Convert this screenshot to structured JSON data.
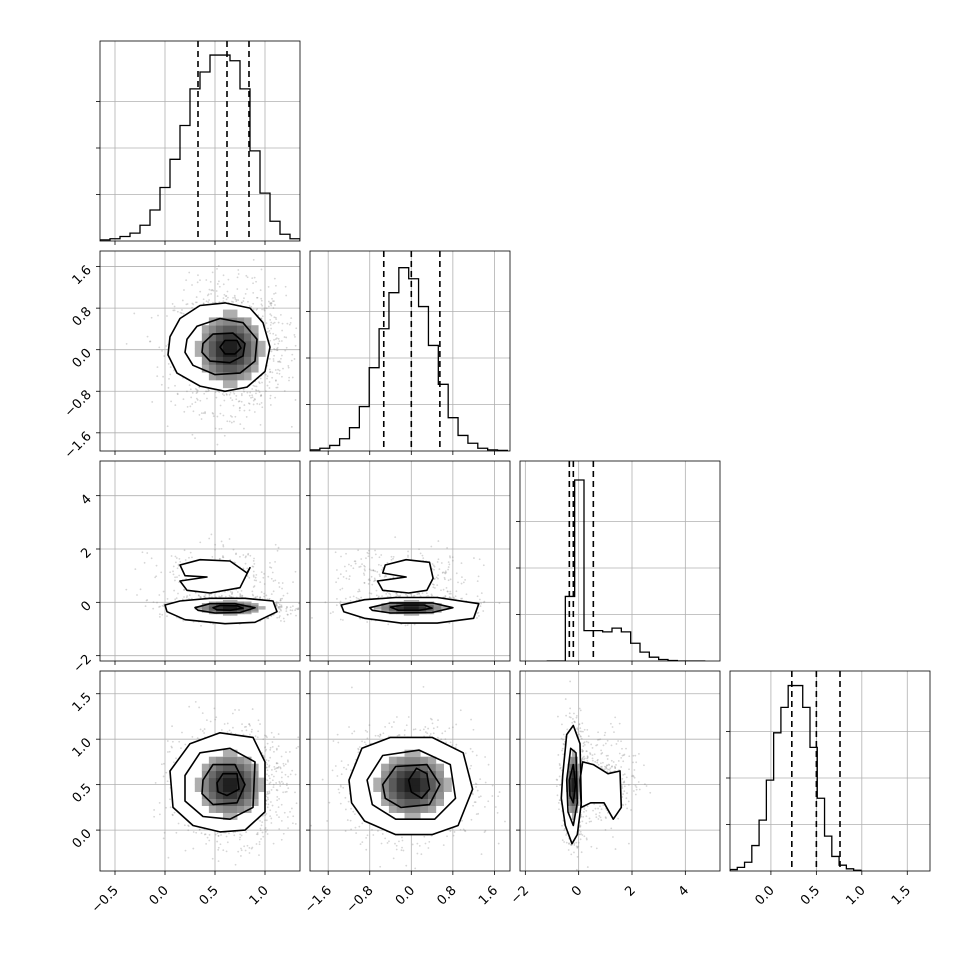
{
  "chart_data": {
    "type": "corner",
    "title": "",
    "parameters": [
      "",
      "",
      "",
      ""
    ],
    "quantile_levels": [
      0.16,
      0.5,
      0.84
    ],
    "grid": true,
    "colors": {
      "line": "#000000",
      "grid": "#b0b0b0",
      "scatter": "#8a8a8a",
      "background": "#ffffff"
    },
    "axes": [
      {
        "range": [
          -0.65,
          1.35
        ],
        "ticks": [
          -0.5,
          0.0,
          0.5,
          1.0
        ],
        "tick_labels": [
          "-0.5",
          "0.0",
          "0.5",
          "1.0"
        ]
      },
      {
        "range": [
          -1.95,
          1.9
        ],
        "ticks": [
          -1.6,
          -0.8,
          0.0,
          0.8,
          1.6
        ],
        "tick_labels": [
          "-1.6",
          "-0.8",
          "0.0",
          "0.8",
          "1.6"
        ]
      },
      {
        "range": [
          -2.2,
          5.3
        ],
        "ticks": [
          -2,
          0,
          2,
          4
        ],
        "tick_labels": [
          "-2",
          "0",
          "2",
          "4"
        ]
      },
      {
        "range": [
          -0.45,
          1.75
        ],
        "ticks": [
          0.0,
          0.5,
          1.0,
          1.5
        ],
        "tick_labels": [
          "0.0",
          "0.5",
          "1.0",
          "1.5"
        ]
      }
    ],
    "histograms": [
      {
        "param": 0,
        "edges_start": -0.65,
        "bin_width": 0.1,
        "counts": [
          2,
          4,
          8,
          14,
          28,
          55,
          95,
          145,
          205,
          270,
          300,
          330,
          330,
          320,
          270,
          160,
          85,
          35,
          12,
          4
        ],
        "quantiles": [
          0.33,
          0.62,
          0.84
        ],
        "ymax": 355
      },
      {
        "param": 1,
        "edges_start": -1.95,
        "bin_width": 0.19,
        "counts": [
          2,
          5,
          10,
          22,
          42,
          80,
          150,
          220,
          285,
          330,
          310,
          260,
          190,
          120,
          60,
          28,
          14,
          5,
          2,
          1
        ],
        "quantiles": [
          -0.53,
          0.0,
          0.55
        ],
        "ymax": 360
      },
      {
        "param": 2,
        "edges_start": -1.2,
        "bin_width": 0.35,
        "counts": [
          0,
          0,
          255,
          715,
          120,
          120,
          115,
          130,
          115,
          70,
          35,
          15,
          6,
          2,
          0,
          0,
          0
        ],
        "quantiles": [
          -0.35,
          -0.2,
          0.55
        ],
        "ymax": 790
      },
      {
        "param": 3,
        "edges_start": -0.45,
        "bin_width": 0.08,
        "counts": [
          2,
          5,
          12,
          35,
          70,
          125,
          190,
          225,
          255,
          255,
          225,
          170,
          100,
          48,
          20,
          8,
          3,
          1
        ],
        "quantiles": [
          0.23,
          0.5,
          0.76
        ],
        "ymax": 275
      }
    ],
    "pairs": [
      {
        "x_param": 0,
        "y_param": 1,
        "style": "gaussian",
        "center": [
          0.65,
          0.02
        ],
        "sigma": [
          0.22,
          0.47
        ],
        "shading_extent": [
          0.35,
          0.85
        ],
        "contours": [
          [
            [
              0.05,
              0.25
            ],
            [
              0.15,
              0.6
            ],
            [
              0.35,
              0.85
            ],
            [
              0.6,
              0.9
            ],
            [
              0.85,
              0.8
            ],
            [
              0.98,
              0.52
            ],
            [
              1.05,
              0.05
            ],
            [
              1.0,
              -0.42
            ],
            [
              0.82,
              -0.72
            ],
            [
              0.6,
              -0.8
            ],
            [
              0.35,
              -0.7
            ],
            [
              0.12,
              -0.45
            ],
            [
              0.03,
              -0.1
            ]
          ],
          [
            [
              0.22,
              0.2
            ],
            [
              0.32,
              0.45
            ],
            [
              0.55,
              0.6
            ],
            [
              0.78,
              0.52
            ],
            [
              0.92,
              0.2
            ],
            [
              0.9,
              -0.22
            ],
            [
              0.75,
              -0.45
            ],
            [
              0.5,
              -0.48
            ],
            [
              0.28,
              -0.3
            ],
            [
              0.2,
              -0.05
            ]
          ],
          [
            [
              0.38,
              0.12
            ],
            [
              0.48,
              0.3
            ],
            [
              0.68,
              0.32
            ],
            [
              0.8,
              0.12
            ],
            [
              0.78,
              -0.12
            ],
            [
              0.65,
              -0.25
            ],
            [
              0.45,
              -0.22
            ],
            [
              0.37,
              -0.05
            ]
          ],
          [
            [
              0.55,
              0.05
            ],
            [
              0.6,
              0.18
            ],
            [
              0.72,
              0.18
            ],
            [
              0.76,
              0.03
            ],
            [
              0.7,
              -0.08
            ],
            [
              0.6,
              -0.08
            ]
          ]
        ]
      },
      {
        "x_param": 0,
        "y_param": 2,
        "style": "two-component",
        "center": [
          0.65,
          -0.2
        ],
        "sigma": [
          0.22,
          0.18
        ],
        "secondary": {
          "center": [
            0.55,
            1.0
          ],
          "sigma": [
            0.3,
            0.55
          ],
          "weight": 0.22
        },
        "contours": [
          [
            [
              0.0,
              -0.1
            ],
            [
              0.15,
              0.05
            ],
            [
              0.45,
              0.15
            ],
            [
              0.8,
              0.15
            ],
            [
              1.08,
              0.05
            ],
            [
              1.12,
              -0.35
            ],
            [
              0.9,
              -0.75
            ],
            [
              0.6,
              -0.8
            ],
            [
              0.2,
              -0.65
            ],
            [
              0.02,
              -0.35
            ]
          ],
          [
            [
              0.3,
              -0.2
            ],
            [
              0.45,
              -0.05
            ],
            [
              0.7,
              -0.05
            ],
            [
              0.9,
              -0.2
            ],
            [
              0.75,
              -0.38
            ],
            [
              0.5,
              -0.4
            ],
            [
              0.33,
              -0.3
            ]
          ],
          [
            [
              0.48,
              -0.2
            ],
            [
              0.55,
              -0.12
            ],
            [
              0.72,
              -0.13
            ],
            [
              0.78,
              -0.22
            ],
            [
              0.65,
              -0.3
            ],
            [
              0.52,
              -0.28
            ]
          ],
          [
            [
              0.15,
              1.4
            ],
            [
              0.35,
              1.6
            ],
            [
              0.65,
              1.55
            ],
            [
              0.82,
              1.1
            ],
            [
              0.85,
              1.3
            ],
            [
              0.75,
              0.55
            ],
            [
              0.45,
              0.35
            ],
            [
              0.22,
              0.45
            ],
            [
              0.15,
              0.8
            ],
            [
              0.42,
              0.95
            ],
            [
              0.2,
              1.0
            ]
          ]
        ]
      },
      {
        "x_param": 0,
        "y_param": 3,
        "style": "gaussian",
        "center": [
          0.65,
          0.5
        ],
        "sigma": [
          0.22,
          0.24
        ],
        "shading_extent": [
          0.35,
          0.85
        ],
        "contours": [
          [
            [
              0.05,
              0.65
            ],
            [
              0.25,
              0.95
            ],
            [
              0.55,
              1.07
            ],
            [
              0.88,
              1.02
            ],
            [
              1.0,
              0.75
            ],
            [
              1.0,
              0.2
            ],
            [
              0.8,
              0.0
            ],
            [
              0.55,
              -0.02
            ],
            [
              0.28,
              0.05
            ],
            [
              0.08,
              0.25
            ]
          ],
          [
            [
              0.2,
              0.6
            ],
            [
              0.35,
              0.85
            ],
            [
              0.65,
              0.9
            ],
            [
              0.9,
              0.75
            ],
            [
              0.88,
              0.25
            ],
            [
              0.65,
              0.12
            ],
            [
              0.38,
              0.15
            ],
            [
              0.2,
              0.32
            ]
          ],
          [
            [
              0.38,
              0.55
            ],
            [
              0.48,
              0.72
            ],
            [
              0.7,
              0.72
            ],
            [
              0.8,
              0.5
            ],
            [
              0.72,
              0.3
            ],
            [
              0.48,
              0.28
            ],
            [
              0.37,
              0.4
            ]
          ],
          [
            [
              0.52,
              0.52
            ],
            [
              0.58,
              0.62
            ],
            [
              0.72,
              0.62
            ],
            [
              0.74,
              0.45
            ],
            [
              0.62,
              0.38
            ],
            [
              0.53,
              0.42
            ]
          ]
        ]
      },
      {
        "x_param": 1,
        "y_param": 2,
        "style": "two-component",
        "center": [
          0.0,
          -0.2
        ],
        "sigma": [
          0.45,
          0.18
        ],
        "secondary": {
          "center": [
            -0.1,
            1.0
          ],
          "sigma": [
            0.6,
            0.55
          ],
          "weight": 0.22
        },
        "contours": [
          [
            [
              -1.35,
              -0.1
            ],
            [
              -0.9,
              0.1
            ],
            [
              -0.3,
              0.18
            ],
            [
              0.5,
              0.18
            ],
            [
              1.3,
              -0.05
            ],
            [
              1.2,
              -0.6
            ],
            [
              0.5,
              -0.78
            ],
            [
              -0.2,
              -0.78
            ],
            [
              -0.9,
              -0.6
            ],
            [
              -1.3,
              -0.35
            ]
          ],
          [
            [
              -0.8,
              -0.2
            ],
            [
              -0.4,
              -0.02
            ],
            [
              0.4,
              -0.02
            ],
            [
              0.8,
              -0.2
            ],
            [
              0.4,
              -0.38
            ],
            [
              -0.4,
              -0.4
            ],
            [
              -0.75,
              -0.3
            ]
          ],
          [
            [
              -0.4,
              -0.18
            ],
            [
              -0.15,
              -0.1
            ],
            [
              0.25,
              -0.1
            ],
            [
              0.4,
              -0.22
            ],
            [
              0.15,
              -0.3
            ],
            [
              -0.25,
              -0.3
            ]
          ],
          [
            [
              -0.5,
              1.4
            ],
            [
              -0.1,
              1.6
            ],
            [
              0.35,
              1.5
            ],
            [
              0.42,
              0.9
            ],
            [
              0.3,
              0.45
            ],
            [
              -0.05,
              0.35
            ],
            [
              -0.55,
              0.45
            ],
            [
              -0.65,
              0.8
            ],
            [
              -0.1,
              0.95
            ],
            [
              -0.55,
              1.1
            ]
          ]
        ]
      },
      {
        "x_param": 1,
        "y_param": 3,
        "style": "gaussian",
        "center": [
          0.02,
          0.5
        ],
        "sigma": [
          0.47,
          0.24
        ],
        "shading_extent": [
          0.35,
          0.85
        ],
        "contours": [
          [
            [
              -1.2,
              0.55
            ],
            [
              -0.95,
              0.9
            ],
            [
              -0.4,
              1.02
            ],
            [
              0.4,
              1.02
            ],
            [
              1.0,
              0.85
            ],
            [
              1.18,
              0.45
            ],
            [
              0.9,
              0.05
            ],
            [
              0.4,
              -0.05
            ],
            [
              -0.3,
              -0.05
            ],
            [
              -0.9,
              0.1
            ],
            [
              -1.15,
              0.3
            ]
          ],
          [
            [
              -0.85,
              0.55
            ],
            [
              -0.55,
              0.82
            ],
            [
              0.15,
              0.88
            ],
            [
              0.75,
              0.72
            ],
            [
              0.85,
              0.35
            ],
            [
              0.45,
              0.12
            ],
            [
              -0.3,
              0.12
            ],
            [
              -0.75,
              0.28
            ]
          ],
          [
            [
              -0.55,
              0.5
            ],
            [
              -0.3,
              0.7
            ],
            [
              0.3,
              0.72
            ],
            [
              0.55,
              0.5
            ],
            [
              0.35,
              0.28
            ],
            [
              -0.2,
              0.25
            ],
            [
              -0.5,
              0.35
            ]
          ],
          [
            [
              -0.05,
              0.55
            ],
            [
              0.1,
              0.68
            ],
            [
              0.3,
              0.62
            ],
            [
              0.35,
              0.45
            ],
            [
              0.2,
              0.35
            ],
            [
              0.0,
              0.42
            ]
          ]
        ]
      },
      {
        "x_param": 2,
        "y_param": 3,
        "style": "two-component",
        "center": [
          -0.2,
          0.5
        ],
        "sigma": [
          0.17,
          0.24
        ],
        "secondary": {
          "center": [
            1.0,
            0.55
          ],
          "sigma": [
            0.6,
            0.25
          ],
          "weight": 0.22
        },
        "contours": [
          [
            [
              -0.6,
              0.6
            ],
            [
              -0.45,
              1.05
            ],
            [
              -0.2,
              1.15
            ],
            [
              0.05,
              0.95
            ],
            [
              0.1,
              0.3
            ],
            [
              -0.05,
              -0.05
            ],
            [
              -0.25,
              -0.15
            ],
            [
              -0.5,
              0.05
            ],
            [
              -0.65,
              0.35
            ]
          ],
          [
            [
              -0.45,
              0.55
            ],
            [
              -0.3,
              0.9
            ],
            [
              -0.1,
              0.85
            ],
            [
              -0.05,
              0.3
            ],
            [
              -0.2,
              0.05
            ],
            [
              -0.4,
              0.2
            ]
          ],
          [
            [
              -0.35,
              0.55
            ],
            [
              -0.2,
              0.72
            ],
            [
              -0.12,
              0.5
            ],
            [
              -0.2,
              0.3
            ],
            [
              -0.33,
              0.38
            ]
          ],
          [
            [
              0.15,
              0.75
            ],
            [
              0.55,
              0.72
            ],
            [
              1.1,
              0.62
            ],
            [
              1.55,
              0.65
            ],
            [
              1.6,
              0.25
            ],
            [
              1.3,
              0.12
            ],
            [
              0.95,
              0.3
            ],
            [
              0.45,
              0.3
            ],
            [
              0.1,
              0.25
            ],
            [
              0.05,
              0.55
            ]
          ]
        ]
      }
    ]
  }
}
